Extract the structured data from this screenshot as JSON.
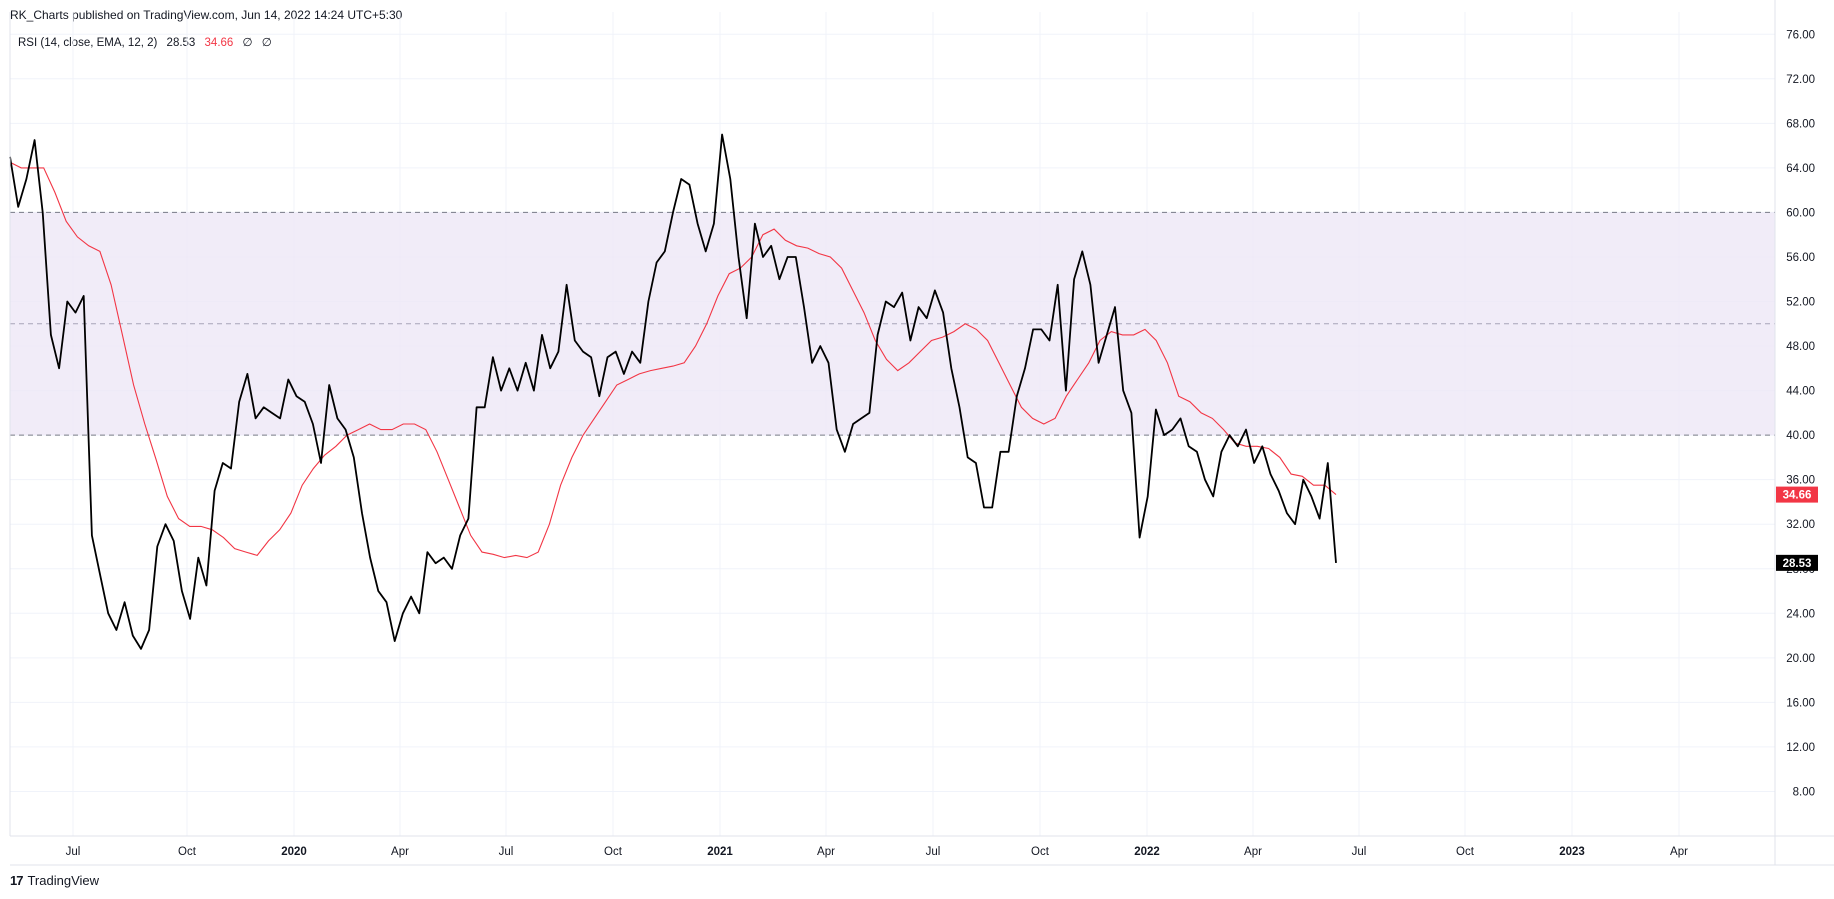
{
  "header": {
    "published": "RK_Charts published on TradingView.com, Jun 14, 2022 14:24 UTC+5:30"
  },
  "legend": {
    "name": "RSI (14, close, EMA, 12, 2)",
    "rsi_value": "28.53",
    "ma_value": "34.66",
    "flag1": "∅",
    "flag2": "∅"
  },
  "brand": {
    "logo_text": "17",
    "name": "TradingView"
  },
  "colors": {
    "rsi_line": "#000000",
    "ma_line": "#f23645",
    "band_fill": "#ede7f6",
    "grid": "#f0f3fa",
    "badge_black": "#000000",
    "badge_red": "#f23645"
  },
  "chart_data": {
    "type": "line",
    "ylim": [
      4,
      78
    ],
    "yticks": [
      "76.00",
      "72.00",
      "68.00",
      "64.00",
      "60.00",
      "56.00",
      "52.00",
      "48.00",
      "44.00",
      "40.00",
      "36.00",
      "32.00",
      "28.00",
      "24.00",
      "20.00",
      "16.00",
      "12.00",
      "8.00"
    ],
    "xticks": [
      {
        "label": "Jul",
        "bold": false
      },
      {
        "label": "Oct",
        "bold": false
      },
      {
        "label": "2020",
        "bold": true
      },
      {
        "label": "Apr",
        "bold": false
      },
      {
        "label": "Jul",
        "bold": false
      },
      {
        "label": "Oct",
        "bold": false
      },
      {
        "label": "2021",
        "bold": true
      },
      {
        "label": "Apr",
        "bold": false
      },
      {
        "label": "Jul",
        "bold": false
      },
      {
        "label": "Oct",
        "bold": false
      },
      {
        "label": "2022",
        "bold": true
      },
      {
        "label": "Apr",
        "bold": false
      },
      {
        "label": "Jul",
        "bold": false
      },
      {
        "label": "Oct",
        "bold": false
      },
      {
        "label": "2023",
        "bold": true
      },
      {
        "label": "Apr",
        "bold": false
      }
    ],
    "band": {
      "upper": 60,
      "middle": 50,
      "lower": 40
    },
    "last_values": {
      "rsi": "28.53",
      "ma": "34.66"
    },
    "series": [
      {
        "name": "RSI",
        "values": [
          65.0,
          60.5,
          63.0,
          66.5,
          60.0,
          49.0,
          46.0,
          52.0,
          51.0,
          52.5,
          31.0,
          27.5,
          24.0,
          22.5,
          25.0,
          22.0,
          20.8,
          22.5,
          30.0,
          32.0,
          30.5,
          26.0,
          23.5,
          29.0,
          26.5,
          35.0,
          37.5,
          37.0,
          43.0,
          45.5,
          41.5,
          42.5,
          42.0,
          41.5,
          45.0,
          43.5,
          43.0,
          41.0,
          37.5,
          44.5,
          41.5,
          40.5,
          38.0,
          33.0,
          29.0,
          26.0,
          25.0,
          21.5,
          24.0,
          25.5,
          24.0,
          29.5,
          28.5,
          29.0,
          28.0,
          31.0,
          32.5,
          42.5,
          42.5,
          47.0,
          44.0,
          46.0,
          44.0,
          46.5,
          44.0,
          49.0,
          46.0,
          47.5,
          53.5,
          48.5,
          47.5,
          47.0,
          43.5,
          47.0,
          47.5,
          45.5,
          47.5,
          46.5,
          52.0,
          55.5,
          56.5,
          60.0,
          63.0,
          62.5,
          59.0,
          56.5,
          59.0,
          67.0,
          63.0,
          56.0,
          50.5,
          59.0,
          56.0,
          57.0,
          54.0,
          56.0,
          56.0,
          51.5,
          46.5,
          48.0,
          46.5,
          40.5,
          38.5,
          41.0,
          41.5,
          42.0,
          49.0,
          52.0,
          51.5,
          52.8,
          48.5,
          51.5,
          50.5,
          53.0,
          51.0,
          46.0,
          42.5,
          38.0,
          37.5,
          33.5,
          33.5,
          38.5,
          38.5,
          43.5,
          46.0,
          49.5,
          49.5,
          48.5,
          53.5,
          44.0,
          54.0,
          56.5,
          53.5,
          46.5,
          49.0,
          51.5,
          44.0,
          42.0,
          30.8,
          34.5,
          42.3,
          40.0,
          40.5,
          41.5,
          39.0,
          38.5,
          36.0,
          34.5,
          38.5,
          40.0,
          39.0,
          40.5,
          37.5,
          39.0,
          36.5,
          35.0,
          33.0,
          32.0,
          36.0,
          34.5,
          32.5,
          37.5,
          28.53
        ]
      },
      {
        "name": "RSI MA",
        "values": [
          64.5,
          64.0,
          64.0,
          64.0,
          61.8,
          59.2,
          57.8,
          57.0,
          56.5,
          53.5,
          49.0,
          44.5,
          41.0,
          37.8,
          34.5,
          32.5,
          31.8,
          31.8,
          31.5,
          30.8,
          29.8,
          29.5,
          29.2,
          30.5,
          31.5,
          33.0,
          35.5,
          37.0,
          38.2,
          39.0,
          40.0,
          40.5,
          41.0,
          40.5,
          40.5,
          41.0,
          41.0,
          40.5,
          38.5,
          36.0,
          33.5,
          31.0,
          29.5,
          29.3,
          29.0,
          29.2,
          29.0,
          29.5,
          32.0,
          35.5,
          38.0,
          40.0,
          41.5,
          43.0,
          44.5,
          45.0,
          45.5,
          45.8,
          46.0,
          46.2,
          46.5,
          48.0,
          50.0,
          52.5,
          54.5,
          55.0,
          56.0,
          58.0,
          58.5,
          57.5,
          57.0,
          56.8,
          56.3,
          56.0,
          55.0,
          53.0,
          51.0,
          48.5,
          46.8,
          45.8,
          46.5,
          47.5,
          48.5,
          48.8,
          49.3,
          50.0,
          49.5,
          48.5,
          46.5,
          44.5,
          42.5,
          41.5,
          41.0,
          41.5,
          43.5,
          45.0,
          46.5,
          48.5,
          49.3,
          49.0,
          49.0,
          49.5,
          48.5,
          46.5,
          43.5,
          43.0,
          42.0,
          41.5,
          40.5,
          39.3,
          39.0,
          39.0,
          38.8,
          38.0,
          36.5,
          36.3,
          35.5,
          35.5,
          34.66
        ]
      }
    ]
  }
}
